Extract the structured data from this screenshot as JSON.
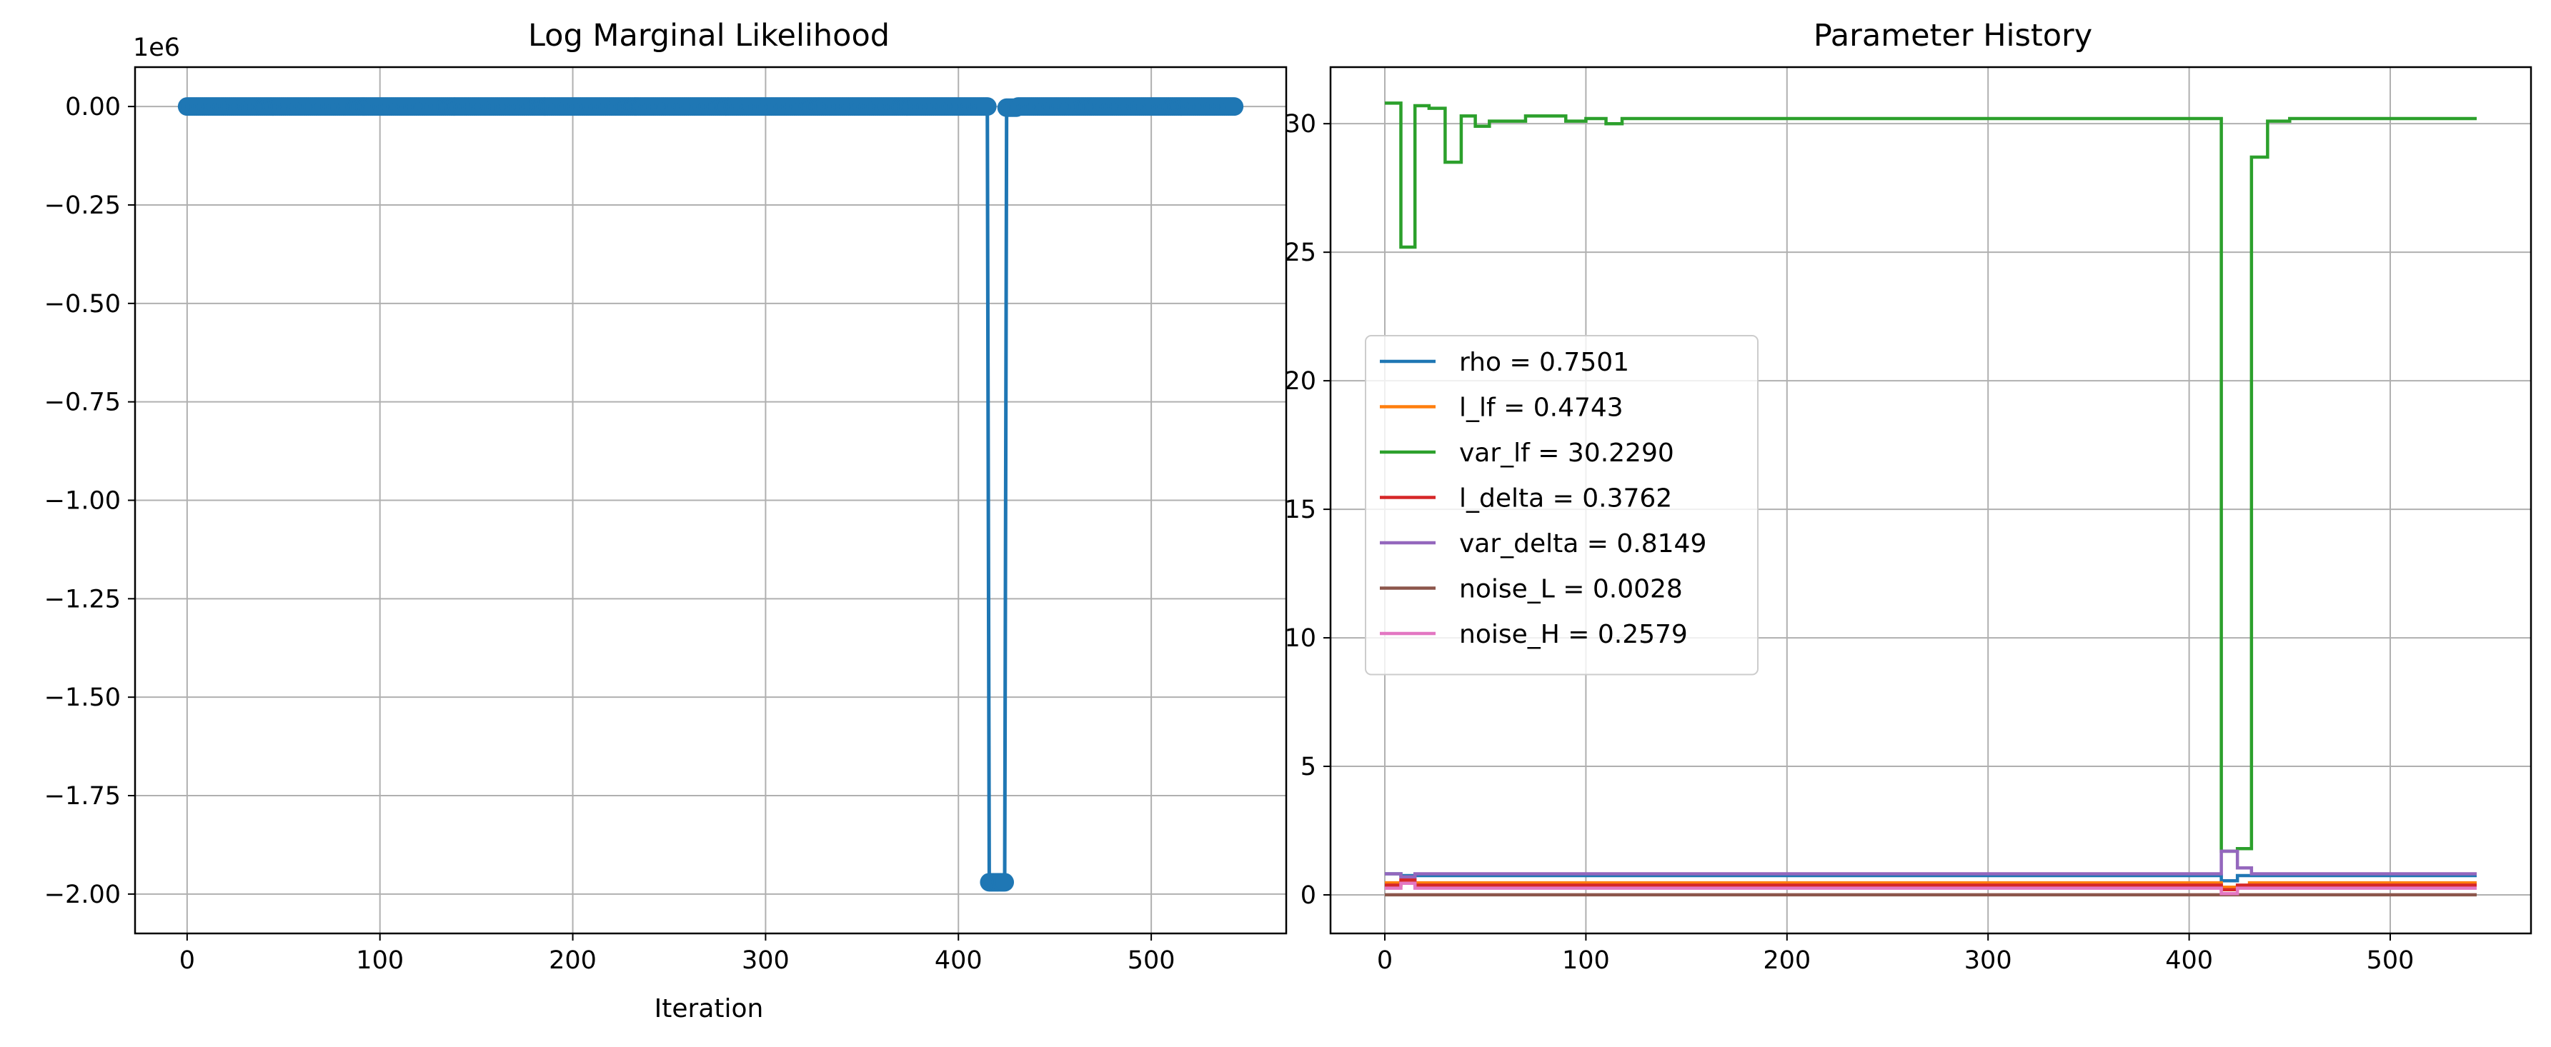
{
  "chart_data": [
    {
      "type": "line",
      "title": "Log Marginal Likelihood",
      "xlabel": "Iteration",
      "ylabel": "",
      "y_scale_label": "1e6",
      "y_multiplier": 1000000,
      "xlim": [
        -27,
        570
      ],
      "ylim": [
        -2.1,
        0.1
      ],
      "xticks": [
        0,
        100,
        200,
        300,
        400,
        500
      ],
      "xtick_labels": [
        "0",
        "100",
        "200",
        "300",
        "400",
        "500"
      ],
      "yticks": [
        0.0,
        -0.25,
        -0.5,
        -0.75,
        -1.0,
        -1.25,
        -1.5,
        -1.75,
        -2.0
      ],
      "ytick_labels": [
        "0.00",
        "−0.25",
        "−0.50",
        "−0.75",
        "−1.00",
        "−1.25",
        "−1.50",
        "−1.75",
        "−2.00"
      ],
      "grid": true,
      "marker": "circle",
      "series": [
        {
          "color": "#1f77b4",
          "segments": [
            {
              "x_start": 0,
              "x_end": 415,
              "y": 0.0
            },
            {
              "x_start": 416,
              "x_end": 424,
              "y": -1.97
            },
            {
              "x_start": 425,
              "x_end": 430,
              "y": -0.003
            },
            {
              "x_start": 431,
              "x_end": 543,
              "y": 0.0
            }
          ]
        }
      ]
    },
    {
      "type": "line",
      "title": "Parameter History",
      "xlabel": "",
      "ylabel": "",
      "xlim": [
        -27,
        570
      ],
      "ylim": [
        -1.5,
        32.2
      ],
      "xticks": [
        0,
        100,
        200,
        300,
        400,
        500
      ],
      "xtick_labels": [
        "0",
        "100",
        "200",
        "300",
        "400",
        "500"
      ],
      "yticks": [
        0,
        5,
        10,
        15,
        20,
        25,
        30
      ],
      "ytick_labels": [
        "0",
        "5",
        "10",
        "15",
        "20",
        "25",
        "30"
      ],
      "grid": true,
      "legend_position": "center-left",
      "series": [
        {
          "name": "rho = 0.7501",
          "color": "#1f77b4",
          "points": [
            [
              0,
              0.82
            ],
            [
              8,
              0.82
            ],
            [
              8,
              0.75
            ],
            [
              416,
              0.75
            ],
            [
              416,
              0.55
            ],
            [
              424,
              0.55
            ],
            [
              424,
              0.75
            ],
            [
              543,
              0.75
            ]
          ]
        },
        {
          "name": "l_lf = 0.4743",
          "color": "#ff7f0e",
          "points": [
            [
              0,
              0.47
            ],
            [
              416,
              0.47
            ],
            [
              416,
              0.3
            ],
            [
              430,
              0.3
            ],
            [
              430,
              0.47
            ],
            [
              543,
              0.47
            ]
          ]
        },
        {
          "name": "var_lf = 30.2290",
          "color": "#2ca02c",
          "points": [
            [
              0,
              30.8
            ],
            [
              8,
              30.8
            ],
            [
              8,
              25.2
            ],
            [
              15,
              25.2
            ],
            [
              15,
              30.7
            ],
            [
              22,
              30.7
            ],
            [
              22,
              30.6
            ],
            [
              30,
              30.6
            ],
            [
              30,
              28.5
            ],
            [
              38,
              28.5
            ],
            [
              38,
              30.3
            ],
            [
              45,
              30.3
            ],
            [
              45,
              29.9
            ],
            [
              52,
              29.9
            ],
            [
              52,
              30.1
            ],
            [
              70,
              30.1
            ],
            [
              70,
              30.3
            ],
            [
              90,
              30.3
            ],
            [
              90,
              30.1
            ],
            [
              100,
              30.1
            ],
            [
              100,
              30.2
            ],
            [
              110,
              30.2
            ],
            [
              110,
              30.0
            ],
            [
              118,
              30.0
            ],
            [
              118,
              30.2
            ],
            [
              416,
              30.2
            ],
            [
              416,
              1.7
            ],
            [
              424,
              1.7
            ],
            [
              424,
              1.8
            ],
            [
              431,
              1.8
            ],
            [
              431,
              28.7
            ],
            [
              439,
              28.7
            ],
            [
              439,
              30.1
            ],
            [
              450,
              30.1
            ],
            [
              450,
              30.2
            ],
            [
              543,
              30.2
            ]
          ]
        },
        {
          "name": "l_delta = 0.3762",
          "color": "#d62728",
          "points": [
            [
              0,
              0.38
            ],
            [
              8,
              0.38
            ],
            [
              8,
              0.58
            ],
            [
              15,
              0.58
            ],
            [
              15,
              0.38
            ],
            [
              416,
              0.38
            ],
            [
              416,
              0.2
            ],
            [
              424,
              0.2
            ],
            [
              424,
              0.38
            ],
            [
              543,
              0.38
            ]
          ]
        },
        {
          "name": "var_delta = 0.8149",
          "color": "#9467bd",
          "points": [
            [
              0,
              0.82
            ],
            [
              8,
              0.82
            ],
            [
              8,
              0.7
            ],
            [
              15,
              0.7
            ],
            [
              15,
              0.82
            ],
            [
              416,
              0.82
            ],
            [
              416,
              1.7
            ],
            [
              424,
              1.7
            ],
            [
              424,
              1.05
            ],
            [
              431,
              1.05
            ],
            [
              431,
              0.82
            ],
            [
              543,
              0.82
            ]
          ]
        },
        {
          "name": "noise_L = 0.0028",
          "color": "#8c564b",
          "points": [
            [
              0,
              0.003
            ],
            [
              543,
              0.003
            ]
          ]
        },
        {
          "name": "noise_H = 0.2579",
          "color": "#e377c2",
          "points": [
            [
              0,
              0.26
            ],
            [
              8,
              0.26
            ],
            [
              8,
              0.45
            ],
            [
              15,
              0.45
            ],
            [
              15,
              0.26
            ],
            [
              416,
              0.26
            ],
            [
              416,
              0.05
            ],
            [
              424,
              0.05
            ],
            [
              424,
              0.26
            ],
            [
              543,
              0.26
            ]
          ]
        }
      ]
    }
  ]
}
